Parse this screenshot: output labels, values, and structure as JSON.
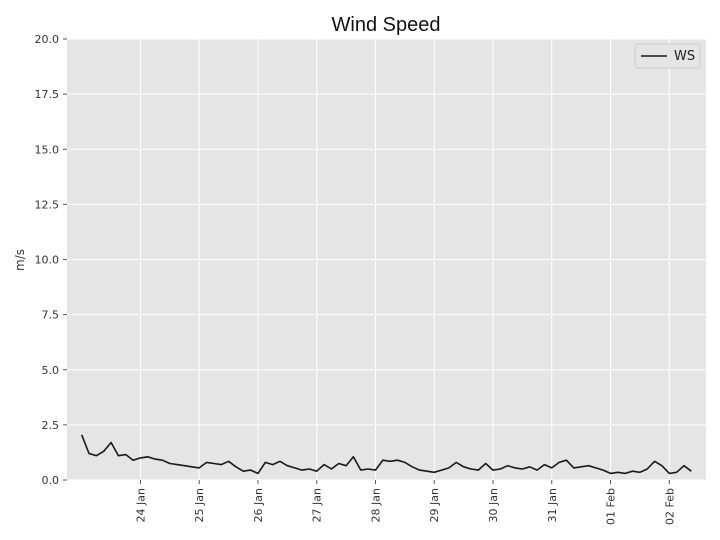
{
  "chart_data": {
    "type": "line",
    "title": "Wind Speed",
    "xlabel": "",
    "ylabel": "m/s",
    "ylim": [
      0,
      20
    ],
    "yticks": [
      "0.0",
      "2.5",
      "5.0",
      "7.5",
      "10.0",
      "12.5",
      "15.0",
      "17.5",
      "20.0"
    ],
    "xlim": [
      "Jan 22 18:00",
      "Feb 02 15:00"
    ],
    "xticks": [
      "24 Jan",
      "25 Jan",
      "26 Jan",
      "27 Jan",
      "28 Jan",
      "29 Jan",
      "30 Jan",
      "31 Jan",
      "01 Feb",
      "02 Feb"
    ],
    "grid": true,
    "legend_position": "top-right",
    "colors": {
      "background": "#e5e5e5",
      "grid": "#ffffff",
      "line": "#1a1a1a"
    },
    "series": [
      {
        "name": "WS",
        "x": [
          "Jan 23 00:00",
          "Jan 23 03:00",
          "Jan 23 06:00",
          "Jan 23 09:00",
          "Jan 23 12:00",
          "Jan 23 15:00",
          "Jan 23 18:00",
          "Jan 23 21:00",
          "Jan 24 00:00",
          "Jan 24 03:00",
          "Jan 24 06:00",
          "Jan 24 09:00",
          "Jan 24 12:00",
          "Jan 24 15:00",
          "Jan 24 18:00",
          "Jan 24 21:00",
          "Jan 25 00:00",
          "Jan 25 03:00",
          "Jan 25 06:00",
          "Jan 25 09:00",
          "Jan 25 12:00",
          "Jan 25 15:00",
          "Jan 25 18:00",
          "Jan 25 21:00",
          "Jan 26 00:00",
          "Jan 26 03:00",
          "Jan 26 06:00",
          "Jan 26 09:00",
          "Jan 26 12:00",
          "Jan 26 15:00",
          "Jan 26 18:00",
          "Jan 26 21:00",
          "Jan 27 00:00",
          "Jan 27 03:00",
          "Jan 27 06:00",
          "Jan 27 09:00",
          "Jan 27 12:00",
          "Jan 27 15:00",
          "Jan 27 18:00",
          "Jan 27 21:00",
          "Jan 28 00:00",
          "Jan 28 03:00",
          "Jan 28 06:00",
          "Jan 28 09:00",
          "Jan 28 12:00",
          "Jan 28 15:00",
          "Jan 28 18:00",
          "Jan 28 21:00",
          "Jan 29 00:00",
          "Jan 29 03:00",
          "Jan 29 06:00",
          "Jan 29 09:00",
          "Jan 29 12:00",
          "Jan 29 15:00",
          "Jan 29 18:00",
          "Jan 29 21:00",
          "Jan 30 00:00",
          "Jan 30 03:00",
          "Jan 30 06:00",
          "Jan 30 09:00",
          "Jan 30 12:00",
          "Jan 30 15:00",
          "Jan 30 18:00",
          "Jan 30 21:00",
          "Jan 31 00:00",
          "Jan 31 03:00",
          "Jan 31 06:00",
          "Jan 31 09:00",
          "Jan 31 12:00",
          "Jan 31 15:00",
          "Jan 31 18:00",
          "Jan 31 21:00",
          "Feb 01 00:00",
          "Feb 01 03:00",
          "Feb 01 06:00",
          "Feb 01 09:00",
          "Feb 01 12:00",
          "Feb 01 15:00",
          "Feb 01 18:00",
          "Feb 01 21:00",
          "Feb 02 00:00",
          "Feb 02 03:00",
          "Feb 02 06:00",
          "Feb 02 09:00"
        ],
        "values": [
          2.05,
          1.2,
          1.1,
          1.3,
          1.7,
          1.1,
          1.15,
          0.9,
          1.0,
          1.05,
          0.95,
          0.9,
          0.75,
          0.7,
          0.65,
          0.6,
          0.55,
          0.8,
          0.75,
          0.7,
          0.85,
          0.6,
          0.4,
          0.45,
          0.3,
          0.8,
          0.7,
          0.85,
          0.65,
          0.55,
          0.45,
          0.5,
          0.4,
          0.7,
          0.5,
          0.75,
          0.65,
          1.05,
          0.45,
          0.5,
          0.45,
          0.9,
          0.85,
          0.9,
          0.8,
          0.6,
          0.45,
          0.4,
          0.35,
          0.45,
          0.55,
          0.8,
          0.6,
          0.5,
          0.45,
          0.75,
          0.45,
          0.5,
          0.65,
          0.55,
          0.5,
          0.6,
          0.45,
          0.7,
          0.55,
          0.8,
          0.9,
          0.55,
          0.6,
          0.65,
          0.55,
          0.45,
          0.3,
          0.35,
          0.3,
          0.4,
          0.35,
          0.5,
          0.85,
          0.65,
          0.3,
          0.35,
          0.65,
          0.4
        ]
      }
    ]
  }
}
